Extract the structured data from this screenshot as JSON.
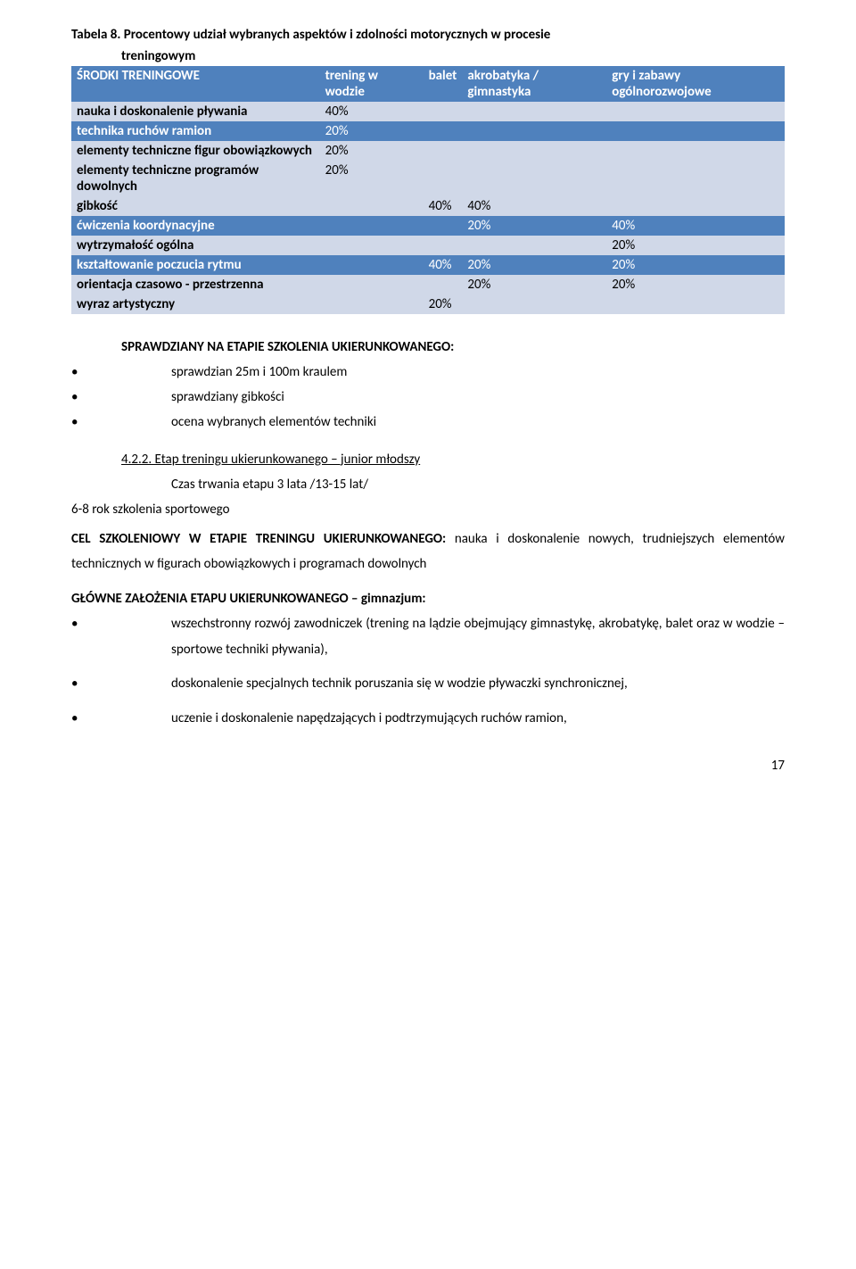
{
  "title_line1": "Tabela 8. Procentowy udział wybranych aspektów i zdolności motorycznych w procesie",
  "title_line2": "treningowym",
  "table": {
    "headers": [
      "ŚRODKI TRENINGOWE",
      "trening w wodzie",
      "balet",
      "akrobatyka / gimnastyka",
      "gry i zabawy ogólnorozwojowe"
    ],
    "rows": [
      {
        "style": "rlight",
        "cells": [
          "nauka i doskonalenie pływania",
          "40%",
          "",
          "",
          ""
        ]
      },
      {
        "style": "rdark",
        "cells": [
          "technika ruchów ramion",
          "20%",
          "",
          "",
          ""
        ]
      },
      {
        "style": "rlight",
        "cells": [
          "elementy techniczne figur obowiązkowych",
          "20%",
          "",
          "",
          ""
        ]
      },
      {
        "style": "rlight",
        "cells": [
          "elementy techniczne programów dowolnych",
          "20%",
          "",
          "",
          ""
        ]
      },
      {
        "style": "rlight",
        "cells": [
          "gibkość",
          "",
          "40%",
          "40%",
          ""
        ]
      },
      {
        "style": "rdark",
        "cells": [
          "ćwiczenia koordynacyjne",
          "",
          "",
          "20%",
          "40%"
        ]
      },
      {
        "style": "rlight",
        "cells": [
          "wytrzymałość ogólna",
          "",
          "",
          "",
          "20%"
        ]
      },
      {
        "style": "rdark",
        "cells": [
          "kształtowanie poczucia rytmu",
          "",
          "40%",
          "20%",
          "20%"
        ]
      },
      {
        "style": "rlight",
        "cells": [
          "orientacja czasowo - przestrzenna",
          "",
          "",
          "20%",
          "20%"
        ]
      },
      {
        "style": "rlight",
        "cells": [
          "wyraz artystyczny",
          "",
          "20%",
          "",
          ""
        ]
      }
    ]
  },
  "section1_heading": "SPRAWDZIANY NA ETAPIE SZKOLENIA UKIERUNKOWANEGO:",
  "section1_bullets": [
    "sprawdzian 25m i 100m kraulem",
    "sprawdziany gibkości",
    "ocena wybranych elementów techniki"
  ],
  "subsection_num_title": "4.2.2. Etap treningu ukierunkowanego – junior młodszy",
  "subsection_line2": "Czas trwania etapu 3 lata /13-15 lat/",
  "noindent_line": "6-8 rok szkolenia sportowego",
  "cel_label": "CEL SZKOLENIOWY W ETAPIE TRENINGU UKIERUNKOWANEGO:",
  "cel_text": " nauka i doskonalenie nowych, trudniejszych elementów technicznych w figurach obowiązkowych i programach dowolnych",
  "glowne": "GŁÓWNE ZAŁOŻENIA ETAPU UKIERUNKOWANEGO – gimnazjum:",
  "section2_bullets": [
    "wszechstronny rozwój zawodniczek (trening na lądzie obejmujący gimnastykę, akrobatykę, balet oraz w wodzie – sportowe techniki pływania),",
    "doskonalenie specjalnych technik poruszania się w wodzie pływaczki synchronicznej,",
    "uczenie i doskonalenie napędzających i podtrzymujących ruchów ramion,"
  ],
  "page_number": "17"
}
